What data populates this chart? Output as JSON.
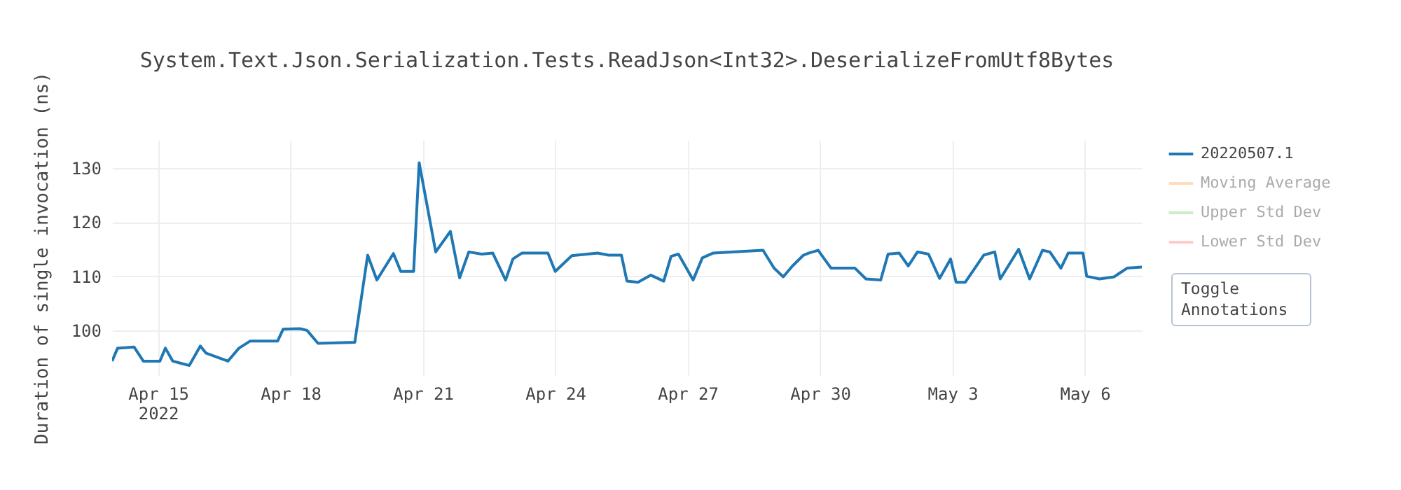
{
  "chart_data": {
    "type": "line",
    "title": "System.Text.Json.Serialization.Tests.ReadJson<Int32>.DeserializeFromUtf8Bytes",
    "ylabel": "Duration of single invocation (ns)",
    "x": [
      "2022-04-13T23:00",
      "2022-04-14T02:00",
      "2022-04-14T11:00",
      "2022-04-14T16:00",
      "2022-04-15T01:00",
      "2022-04-15T04:00",
      "2022-04-15T08:00",
      "2022-04-15T17:00",
      "2022-04-15T23:00",
      "2022-04-16T02:00",
      "2022-04-16T14:00",
      "2022-04-16T20:00",
      "2022-04-17T02:00",
      "2022-04-17T17:00",
      "2022-04-17T20:00",
      "2022-04-18T05:00",
      "2022-04-18T09:00",
      "2022-04-18T15:00",
      "2022-04-19T11:00",
      "2022-04-19T18:00",
      "2022-04-19T23:00",
      "2022-04-20T08:00",
      "2022-04-20T12:00",
      "2022-04-20T19:00",
      "2022-04-20T22:00",
      "2022-04-21T07:00",
      "2022-04-21T15:00",
      "2022-04-21T20:00",
      "2022-04-22T01:00",
      "2022-04-22T08:00",
      "2022-04-22T14:00",
      "2022-04-22T21:00",
      "2022-04-23T01:00",
      "2022-04-23T06:00",
      "2022-04-23T20:00",
      "2022-04-24T00:00",
      "2022-04-24T09:00",
      "2022-04-24T23:00",
      "2022-04-25T05:00",
      "2022-04-25T12:00",
      "2022-04-25T15:00",
      "2022-04-25T21:00",
      "2022-04-26T04:00",
      "2022-04-26T11:00",
      "2022-04-26T15:00",
      "2022-04-26T19:00",
      "2022-04-27T03:00",
      "2022-04-27T08:00",
      "2022-04-27T14:00",
      "2022-04-28T17:00",
      "2022-04-28T23:00",
      "2022-04-29T04:00",
      "2022-04-29T09:00",
      "2022-04-29T15:00",
      "2022-04-29T18:00",
      "2022-04-29T23:00",
      "2022-04-30T06:00",
      "2022-04-30T19:00",
      "2022-05-01T01:00",
      "2022-05-01T09:00",
      "2022-05-01T13:00",
      "2022-05-01T19:00",
      "2022-05-02T00:00",
      "2022-05-02T05:00",
      "2022-05-02T11:00",
      "2022-05-02T17:00",
      "2022-05-02T23:00",
      "2022-05-03T02:00",
      "2022-05-03T07:00",
      "2022-05-03T17:00",
      "2022-05-03T23:00",
      "2022-05-04T02:00",
      "2022-05-04T12:00",
      "2022-05-04T18:00",
      "2022-05-05T01:00",
      "2022-05-05T05:00",
      "2022-05-05T11:00",
      "2022-05-05T15:00",
      "2022-05-05T23:00",
      "2022-05-06T01:00",
      "2022-05-06T08:00",
      "2022-05-06T16:00",
      "2022-05-06T19:00",
      "2022-05-06T23:00",
      "2022-05-07T07:00"
    ],
    "series": [
      {
        "name": "20220507.1",
        "color": "#1f77b4",
        "values": [
          94.3,
          96.7,
          96.9,
          94.3,
          94.3,
          96.7,
          94.3,
          93.5,
          97.1,
          95.8,
          94.3,
          96.7,
          98.0,
          98.0,
          100.2,
          100.3,
          100.0,
          97.6,
          97.8,
          113.9,
          109.3,
          114.2,
          110.9,
          110.9,
          131.0,
          114.5,
          118.3,
          109.7,
          114.5,
          114.1,
          114.3,
          109.3,
          113.2,
          114.3,
          114.3,
          110.9,
          113.8,
          114.3,
          113.9,
          113.9,
          109.1,
          108.9,
          110.2,
          109.1,
          113.7,
          114.1,
          109.3,
          113.4,
          114.3,
          114.8,
          111.5,
          109.9,
          111.9,
          113.9,
          114.3,
          114.8,
          111.5,
          111.5,
          109.5,
          109.3,
          114.1,
          114.3,
          111.9,
          114.5,
          114.1,
          109.6,
          113.2,
          108.9,
          108.9,
          113.9,
          114.5,
          109.5,
          115.0,
          109.5,
          114.8,
          114.5,
          111.5,
          114.3,
          114.3,
          110.0,
          109.5,
          109.9,
          110.6,
          111.5,
          111.7
        ]
      },
      {
        "name": "Moving Average",
        "color": "#ffbb78",
        "values": [
          null,
          null,
          null,
          null,
          null,
          null,
          null,
          null,
          null,
          null,
          null,
          null,
          null,
          null,
          null,
          null,
          null,
          null,
          null,
          null,
          null,
          null,
          null,
          null,
          null,
          null,
          null,
          null,
          null,
          null,
          null,
          null,
          null,
          null,
          null,
          null,
          null,
          null,
          null,
          null,
          null,
          null,
          null,
          null,
          null,
          null,
          null,
          null,
          null,
          null,
          null,
          null,
          null,
          null,
          null,
          null,
          null,
          null,
          null,
          null,
          null,
          null,
          null,
          null,
          null,
          null,
          null,
          null,
          null,
          null,
          null,
          null,
          null,
          null,
          null,
          null,
          null,
          null,
          null,
          null,
          null,
          null,
          null,
          null,
          null
        ]
      },
      {
        "name": "Upper Std Dev",
        "color": "#98df8a",
        "values": [
          null,
          null,
          null,
          null,
          null,
          null,
          null,
          null,
          null,
          null,
          null,
          null,
          null,
          null,
          null,
          null,
          null,
          null,
          null,
          null,
          null,
          null,
          null,
          null,
          null,
          null,
          null,
          null,
          null,
          null,
          null,
          null,
          null,
          null,
          null,
          null,
          null,
          null,
          null,
          null,
          null,
          null,
          null,
          null,
          null,
          null,
          null,
          null,
          null,
          null,
          null,
          null,
          null,
          null,
          null,
          null,
          null,
          null,
          null,
          null,
          null,
          null,
          null,
          null,
          null,
          null,
          null,
          null,
          null,
          null,
          null,
          null,
          null,
          null,
          null,
          null,
          null,
          null,
          null,
          null,
          null,
          null,
          null,
          null,
          null
        ]
      },
      {
        "name": "Lower Std Dev",
        "color": "#ff9896",
        "values": [
          null,
          null,
          null,
          null,
          null,
          null,
          null,
          null,
          null,
          null,
          null,
          null,
          null,
          null,
          null,
          null,
          null,
          null,
          null,
          null,
          null,
          null,
          null,
          null,
          null,
          null,
          null,
          null,
          null,
          null,
          null,
          null,
          null,
          null,
          null,
          null,
          null,
          null,
          null,
          null,
          null,
          null,
          null,
          null,
          null,
          null,
          null,
          null,
          null,
          null,
          null,
          null,
          null,
          null,
          null,
          null,
          null,
          null,
          null,
          null,
          null,
          null,
          null,
          null,
          null,
          null,
          null,
          null,
          null,
          null,
          null,
          null,
          null,
          null,
          null,
          null,
          null,
          null,
          null,
          null,
          null,
          null,
          null,
          null,
          null
        ]
      }
    ],
    "xlim": [
      "2022-04-13T23:00",
      "2022-05-07T07:00"
    ],
    "xticks": [
      {
        "value": "2022-04-15",
        "label": "Apr 15\n2022"
      },
      {
        "value": "2022-04-18",
        "label": "Apr 18"
      },
      {
        "value": "2022-04-21",
        "label": "Apr 21"
      },
      {
        "value": "2022-04-24",
        "label": "Apr 24"
      },
      {
        "value": "2022-04-27",
        "label": "Apr 27"
      },
      {
        "value": "2022-04-30",
        "label": "Apr 30"
      },
      {
        "value": "2022-05-03",
        "label": "May 3"
      },
      {
        "value": "2022-05-06",
        "label": "May 6"
      }
    ],
    "ylim": [
      91.7,
      135.2
    ],
    "yticks": [
      100,
      110,
      120,
      130
    ],
    "grid": true,
    "legend": "top right",
    "line_style": "solid",
    "marker": "none",
    "annotations": [
      "Toggle\nAnnotations"
    ]
  }
}
